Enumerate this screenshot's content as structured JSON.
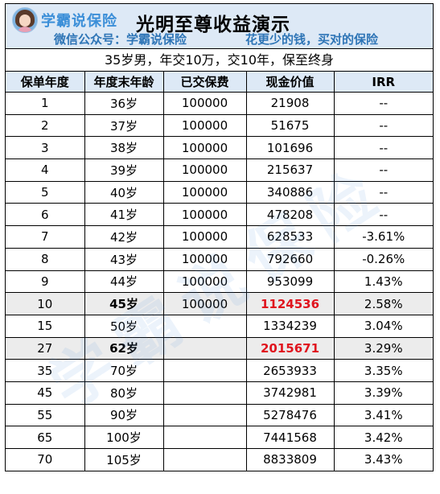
{
  "header": {
    "logo_text": "学霸说保险",
    "title": "光明至尊收益演示",
    "subtitle_left": "微信公众号：学霸说保险",
    "subtitle_right": "花更少的钱，买对的保险"
  },
  "condition": "35岁男，年交10万，交10年，保至终身",
  "columns": [
    "保单年度",
    "年度末年龄",
    "已交保费",
    "现金价值",
    "IRR"
  ],
  "rows": [
    {
      "year": "1",
      "age": "36岁",
      "premium": "100000",
      "cash": "21908",
      "irr": "--"
    },
    {
      "year": "2",
      "age": "37岁",
      "premium": "100000",
      "cash": "51675",
      "irr": "--"
    },
    {
      "year": "3",
      "age": "38岁",
      "premium": "100000",
      "cash": "101696",
      "irr": "--"
    },
    {
      "year": "4",
      "age": "39岁",
      "premium": "100000",
      "cash": "215637",
      "irr": "--"
    },
    {
      "year": "5",
      "age": "40岁",
      "premium": "100000",
      "cash": "340886",
      "irr": "--"
    },
    {
      "year": "6",
      "age": "41岁",
      "premium": "100000",
      "cash": "478208",
      "irr": "--"
    },
    {
      "year": "7",
      "age": "42岁",
      "premium": "100000",
      "cash": "628533",
      "irr": "-3.61%"
    },
    {
      "year": "8",
      "age": "43岁",
      "premium": "100000",
      "cash": "792660",
      "irr": "-0.26%"
    },
    {
      "year": "9",
      "age": "44岁",
      "premium": "100000",
      "cash": "953099",
      "irr": "1.43%"
    },
    {
      "year": "10",
      "age": "45岁",
      "premium": "100000",
      "cash": "1124536",
      "irr": "2.58%"
    },
    {
      "year": "15",
      "age": "50岁",
      "premium": "",
      "cash": "1334239",
      "irr": "3.04%"
    },
    {
      "year": "27",
      "age": "62岁",
      "premium": "",
      "cash": "2015671",
      "irr": "3.29%"
    },
    {
      "year": "35",
      "age": "70岁",
      "premium": "",
      "cash": "2653933",
      "irr": "3.35%"
    },
    {
      "year": "45",
      "age": "80岁",
      "premium": "",
      "cash": "3742981",
      "irr": "3.39%"
    },
    {
      "year": "55",
      "age": "90岁",
      "premium": "",
      "cash": "5278476",
      "irr": "3.41%"
    },
    {
      "year": "65",
      "age": "100岁",
      "premium": "",
      "cash": "7441568",
      "irr": "3.42%"
    },
    {
      "year": "70",
      "age": "105岁",
      "premium": "",
      "cash": "8833809",
      "irr": "3.43%"
    }
  ],
  "highlights": {
    "rows": [
      9,
      11
    ],
    "cash_color": "#e0141e",
    "row_bg": "#ececec"
  },
  "watermark": "学霸说保险"
}
